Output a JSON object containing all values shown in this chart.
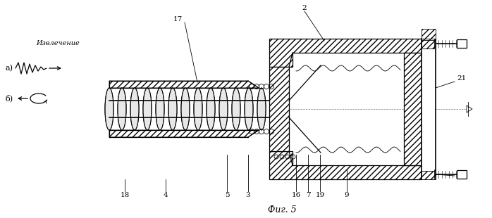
{
  "title": "Фиг. 5",
  "background_color": "#ffffff",
  "line_color": "#000000",
  "extraction_label": "Извлечение",
  "a_label": "а)",
  "b_label": "б)"
}
